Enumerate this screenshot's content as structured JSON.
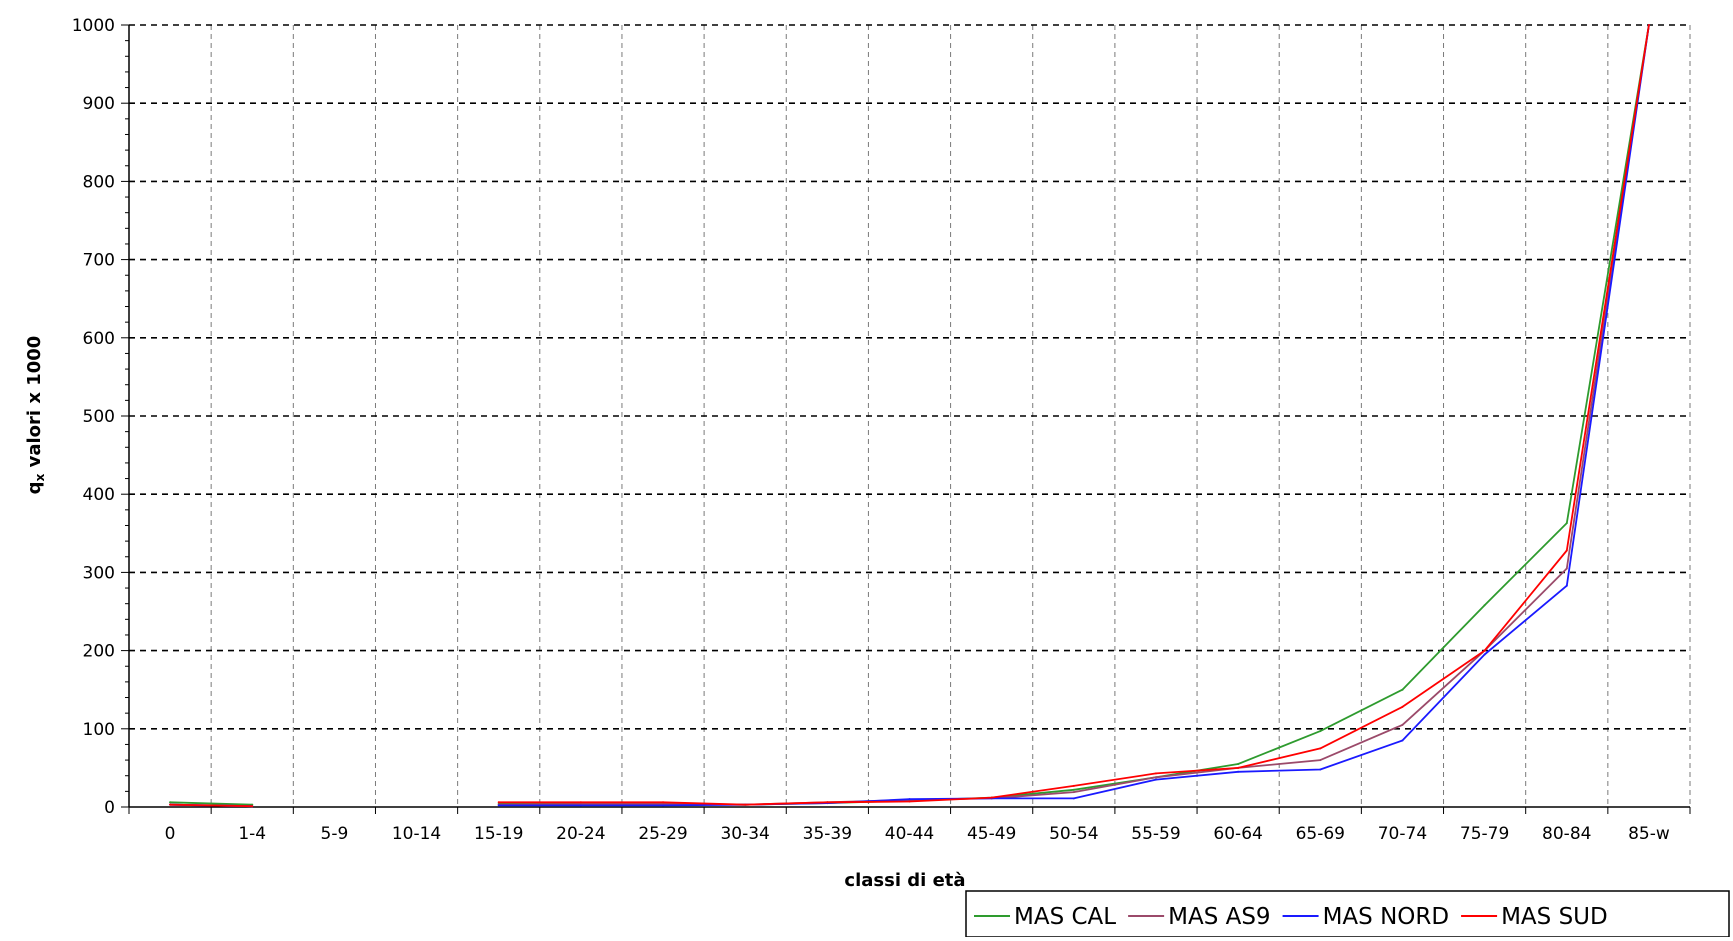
{
  "chart_data": {
    "type": "line",
    "title": "",
    "xlabel": "classi di età",
    "ylabel_main": "q",
    "ylabel_sub": "x",
    "ylabel_rest": " valori x 1000",
    "categories": [
      "0",
      "1-4",
      "5-9",
      "10-14",
      "15-19",
      "20-24",
      "25-29",
      "30-34",
      "35-39",
      "40-44",
      "45-49",
      "50-54",
      "55-59",
      "60-64",
      "65-69",
      "70-74",
      "75-79",
      "80-84",
      "85-w"
    ],
    "yticks": [
      0,
      100,
      200,
      300,
      400,
      500,
      600,
      700,
      800,
      900,
      1000
    ],
    "ylim": [
      0,
      1000
    ],
    "grid": true,
    "legend_position": "bottom-right",
    "series": [
      {
        "name": "MAS CAL",
        "color": "#2e9b2e",
        "values": [
          6,
          3,
          null,
          null,
          4,
          4,
          4,
          3,
          5,
          8,
          12,
          22,
          38,
          55,
          97,
          150,
          258,
          363,
          1000
        ]
      },
      {
        "name": "MAS AS9",
        "color": "#9b4a6a",
        "values": [
          3,
          1,
          null,
          null,
          3,
          4,
          4,
          3,
          6,
          9,
          11,
          19,
          38,
          50,
          60,
          105,
          200,
          305,
          1000
        ]
      },
      {
        "name": "MAS NORD",
        "color": "#1a1aff",
        "values": [
          3,
          1,
          null,
          null,
          2,
          2,
          2,
          3,
          5,
          10,
          11,
          11,
          35,
          45,
          48,
          85,
          195,
          283,
          1000
        ]
      },
      {
        "name": "MAS SUD",
        "color": "#ff0000",
        "values": [
          3,
          1,
          null,
          null,
          6,
          6,
          6,
          3,
          6,
          7,
          12,
          27,
          43,
          50,
          75,
          128,
          200,
          328,
          1000
        ]
      }
    ]
  }
}
